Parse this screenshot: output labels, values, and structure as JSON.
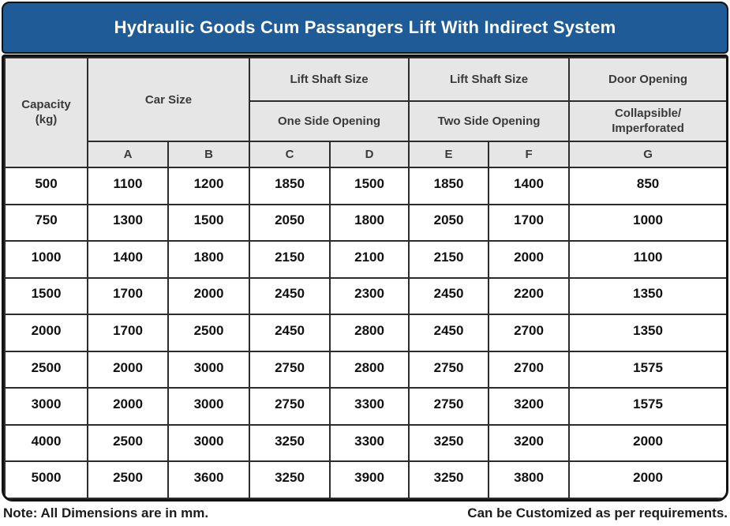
{
  "title": "Hydraulic Goods Cum Passangers Lift With Indirect System",
  "colors": {
    "title_bg": "#1e5b97",
    "title_text": "#ffffff",
    "header_bg": "#e6e6e6",
    "inner_border": "#2c2c2c",
    "outer_border": "#121212",
    "data_text": "#111111"
  },
  "table": {
    "header": {
      "capacity_line1": "Capacity",
      "capacity_line2": "(kg)",
      "car_size": "Car Size",
      "lift_shaft_one": "Lift Shaft Size",
      "one_side_opening": "One Side Opening",
      "lift_shaft_two": "Lift Shaft Size",
      "two_side_opening": "Two Side Opening",
      "door_opening": "Door Opening",
      "door_type_line1": "Collapsible/",
      "door_type_line2": "Imperforated",
      "letters": [
        "A",
        "B",
        "C",
        "D",
        "E",
        "F",
        "G"
      ]
    },
    "rows": [
      [
        500,
        1100,
        1200,
        1850,
        1500,
        1850,
        1400,
        850
      ],
      [
        750,
        1300,
        1500,
        2050,
        1800,
        2050,
        1700,
        1000
      ],
      [
        1000,
        1400,
        1800,
        2150,
        2100,
        2150,
        2000,
        1100
      ],
      [
        1500,
        1700,
        2000,
        2450,
        2300,
        2450,
        2200,
        1350
      ],
      [
        2000,
        1700,
        2500,
        2450,
        2800,
        2450,
        2700,
        1350
      ],
      [
        2500,
        2000,
        3000,
        2750,
        2800,
        2750,
        2700,
        1575
      ],
      [
        3000,
        2000,
        3000,
        2750,
        3300,
        2750,
        3200,
        1575
      ],
      [
        4000,
        2500,
        3000,
        3250,
        3300,
        3250,
        3200,
        2000
      ],
      [
        5000,
        2500,
        3600,
        3250,
        3900,
        3250,
        3800,
        2000
      ]
    ]
  },
  "footer": {
    "note": "Note: All Dimensions are in mm.",
    "customized": "Can be Customized as per requirements."
  }
}
